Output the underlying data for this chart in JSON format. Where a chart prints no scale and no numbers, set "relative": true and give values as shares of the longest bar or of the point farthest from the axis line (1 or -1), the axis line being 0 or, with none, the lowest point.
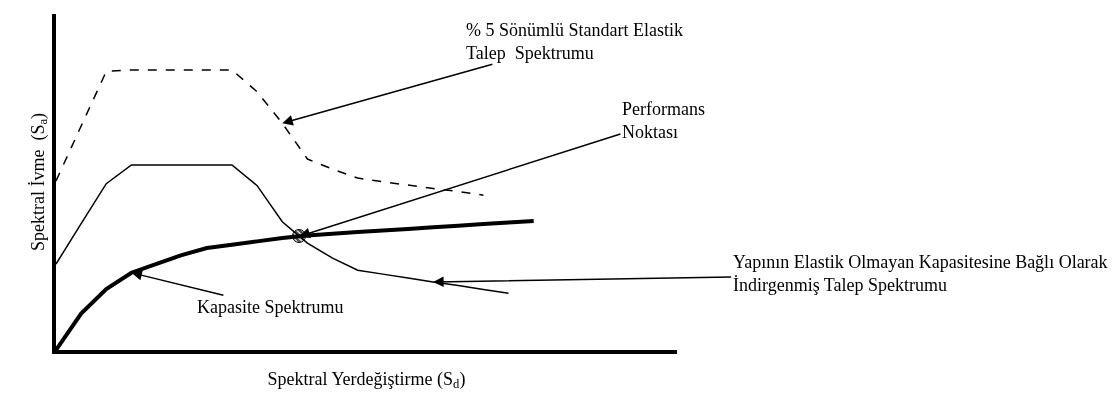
{
  "chart_data": {
    "type": "line",
    "relative": true,
    "tick_labels": false,
    "grid": false,
    "categories": [
      null,
      null,
      null,
      null,
      null,
      null,
      null,
      null,
      null,
      null,
      null,
      null,
      null,
      null,
      null,
      null,
      null,
      null,
      null,
      null
    ],
    "xlabel": "Spektral Yerdeğiştirme (S$_{d}$)",
    "ylabel": "Spektral İvme  (S$_{a}$)",
    "series": [
      {
        "color": "#000000",
        "line_style": "dashed",
        "values": [
          0.604,
          0.8,
          0.995,
          1,
          1,
          1,
          1,
          1,
          0.922,
          0.81,
          0.682,
          0.646,
          0.614,
          0.601,
          0.589,
          0.577,
          0.566,
          0.553,
          null,
          null
        ]
      },
      {
        "color": "#000000",
        "line_style": "solid",
        "values": [
          0.307,
          0.451,
          0.594,
          0.661,
          0.661,
          0.661,
          0.661,
          0.661,
          0.587,
          0.458,
          0.382,
          0.328,
          0.285,
          0.271,
          0.257,
          0.243,
          0.23,
          0.216,
          0.203,
          null
        ]
      },
      {
        "color": "#000000",
        "line_style": "solid",
        "values": [
          0,
          0.13,
          0.218,
          0.276,
          0.308,
          0.339,
          0.364,
          0.376,
          0.388,
          0.4,
          0.409,
          0.415,
          0.421,
          0.427,
          0.432,
          0.438,
          0.444,
          0.45,
          0.455,
          0.461
        ]
      }
    ],
    "annotations": [
      "% 5 Sönümlü Standart Elastik\nTalep  Spektrumu",
      "Performans\nNoktası",
      "Yapının Elastik Olmayan Kapasitesine Bağlı Olarak\nİndirgenmiş Talep Spektrumu",
      "Kapasite Spektrumu"
    ]
  }
}
